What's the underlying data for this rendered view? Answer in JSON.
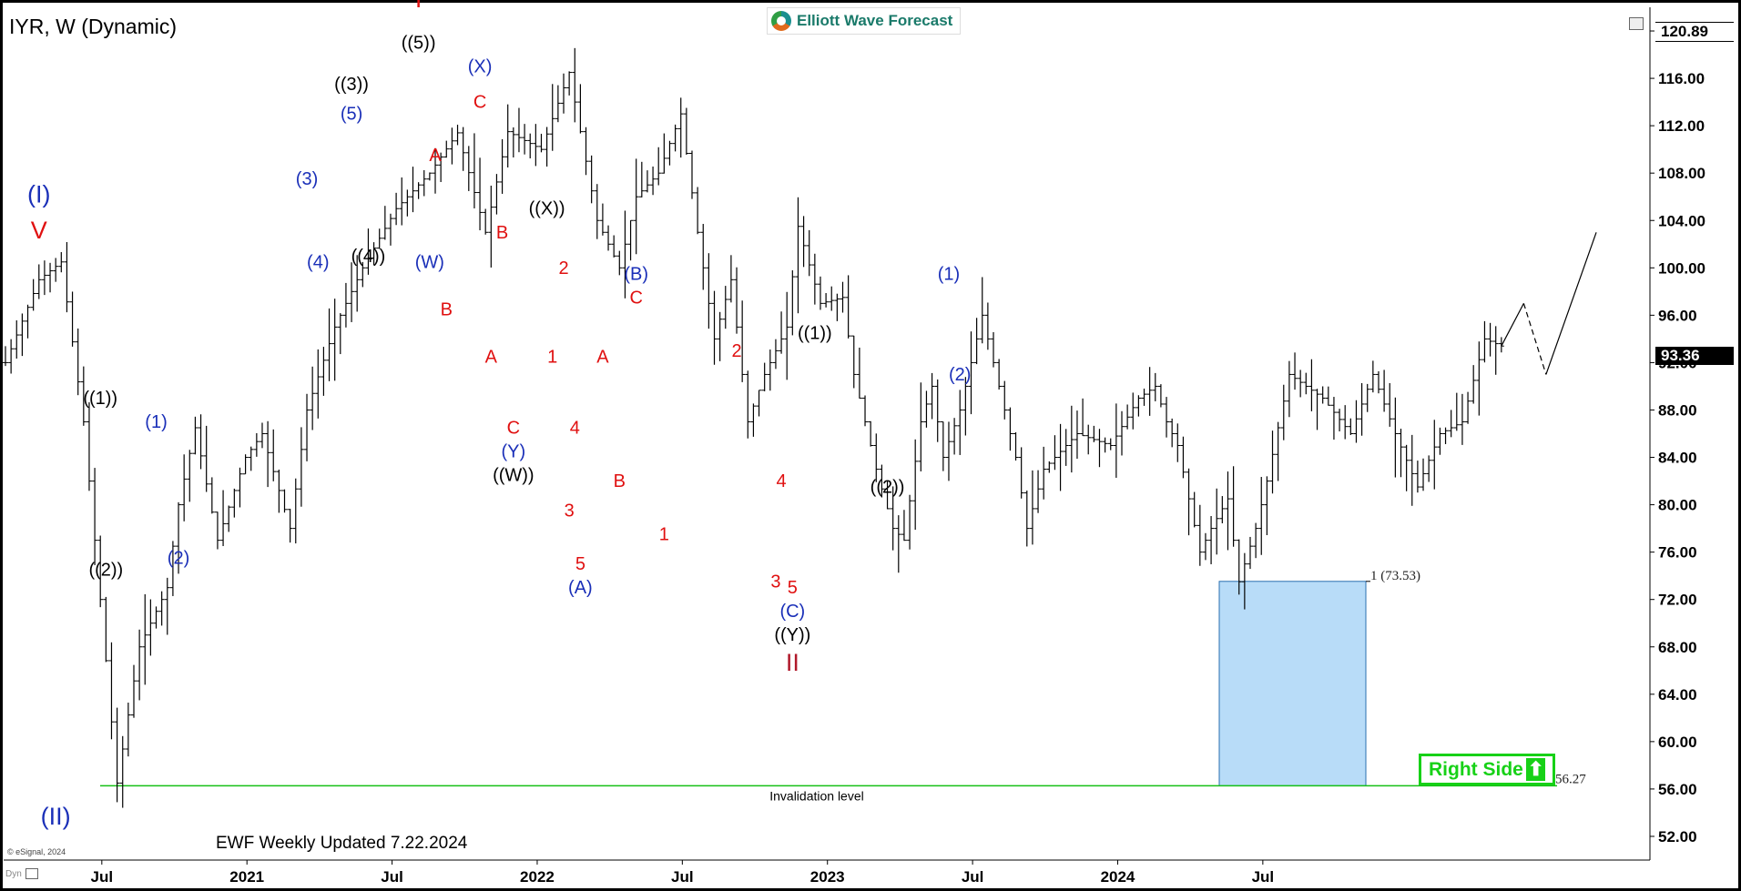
{
  "header": {
    "ticker": "IYR, W (Dynamic)",
    "brand": "Elliott Wave Forecast",
    "last_high_badge": "120.89",
    "current_price_badge": "93.36"
  },
  "footer": {
    "note": "EWF Weekly Updated 7.22.2024",
    "copyright": "© eSignal, 2024",
    "dyn": "Dyn"
  },
  "right_side": {
    "label": "Right Side",
    "arrow": "⬆"
  },
  "colors": {
    "black_labels": "#000000",
    "blue_labels": "#1a2fb8",
    "red_labels": "#e01010",
    "darkred_labels": "#b0182a",
    "box_fill": "#b8dcf8",
    "box_edge": "#2a6fb0",
    "invalidation_line": "#16c016",
    "right_side": "#17d117"
  },
  "chart_data": {
    "type": "bar",
    "title": "",
    "symbol": "IYR",
    "timeframe": "W",
    "ylim": [
      50,
      122
    ],
    "y_ticks": [
      "52.00",
      "56.00",
      "60.00",
      "64.00",
      "68.00",
      "72.00",
      "76.00",
      "80.00",
      "84.00",
      "88.00",
      "92.00",
      "96.00",
      "100.00",
      "104.00",
      "108.00",
      "112.00",
      "116.00",
      "120.00"
    ],
    "x_ticks": [
      "Jul",
      "2021",
      "Jul",
      "2022",
      "Jul",
      "2023",
      "Jul",
      "2024",
      "Jul"
    ],
    "grid": false,
    "price_path": [
      [
        0,
        92
      ],
      [
        6,
        99
      ],
      [
        10,
        100.5
      ],
      [
        14,
        87
      ],
      [
        17,
        72
      ],
      [
        20,
        56.5
      ],
      [
        24,
        68
      ],
      [
        29,
        73
      ],
      [
        31,
        80
      ],
      [
        34,
        86.5
      ],
      [
        38,
        77
      ],
      [
        43,
        84
      ],
      [
        46,
        86
      ],
      [
        51,
        78
      ],
      [
        54,
        88
      ],
      [
        59,
        95
      ],
      [
        64,
        100
      ],
      [
        70,
        105
      ],
      [
        76,
        108
      ],
      [
        81,
        111.4
      ],
      [
        86,
        103
      ],
      [
        90,
        111.5
      ],
      [
        96,
        110
      ],
      [
        101,
        116.5
      ],
      [
        106,
        104
      ],
      [
        110,
        100
      ],
      [
        113,
        106
      ],
      [
        117,
        108
      ],
      [
        121,
        113
      ],
      [
        124,
        103
      ],
      [
        127,
        94
      ],
      [
        130,
        99
      ],
      [
        133,
        87
      ],
      [
        136,
        91
      ],
      [
        140,
        95
      ],
      [
        142,
        103.5
      ],
      [
        146,
        97
      ],
      [
        150,
        97.5
      ],
      [
        152,
        91
      ],
      [
        156,
        83
      ],
      [
        159,
        78
      ],
      [
        161,
        77
      ],
      [
        164,
        87
      ],
      [
        166,
        90
      ],
      [
        168,
        84
      ],
      [
        171,
        88
      ],
      [
        175,
        96
      ],
      [
        178,
        90
      ],
      [
        181,
        84
      ],
      [
        183,
        78
      ],
      [
        186,
        83
      ],
      [
        192,
        86
      ],
      [
        198,
        85
      ],
      [
        203,
        89
      ],
      [
        206,
        90
      ],
      [
        208,
        87
      ],
      [
        210,
        85
      ],
      [
        214,
        76
      ],
      [
        216,
        78
      ],
      [
        219,
        80.5
      ],
      [
        221,
        73.5
      ],
      [
        224,
        78
      ],
      [
        226,
        82
      ],
      [
        230,
        91
      ],
      [
        236,
        89
      ],
      [
        241,
        86
      ],
      [
        245,
        91
      ],
      [
        249,
        86
      ],
      [
        253,
        81.5
      ],
      [
        257,
        86
      ],
      [
        261,
        87
      ],
      [
        265,
        94
      ],
      [
        268,
        93.4
      ]
    ],
    "projection": [
      [
        268,
        93.4
      ],
      [
        272,
        97
      ],
      [
        276,
        91
      ],
      [
        285,
        103
      ]
    ],
    "wave_labels": [
      {
        "text": "(I)",
        "x": 6,
        "y": 105.5,
        "color": "blue"
      },
      {
        "text": "V",
        "x": 6,
        "y": 102.5,
        "color": "red"
      },
      {
        "text": "(II)",
        "x": 9,
        "y": 53,
        "color": "blue"
      },
      {
        "text": "((1))",
        "x": 17,
        "y": 88.5,
        "color": "black"
      },
      {
        "text": "((2))",
        "x": 18,
        "y": 74,
        "color": "black"
      },
      {
        "text": "(1)",
        "x": 27,
        "y": 86.5,
        "color": "blue"
      },
      {
        "text": "(2)",
        "x": 31,
        "y": 75,
        "color": "blue"
      },
      {
        "text": "(3)",
        "x": 54,
        "y": 107,
        "color": "blue"
      },
      {
        "text": "(4)",
        "x": 56,
        "y": 100,
        "color": "blue"
      },
      {
        "text": "((3))",
        "x": 62,
        "y": 115,
        "color": "black"
      },
      {
        "text": "(5)",
        "x": 62,
        "y": 112.5,
        "color": "blue"
      },
      {
        "text": "((4))",
        "x": 65,
        "y": 100.5,
        "color": "black"
      },
      {
        "text": "I",
        "x": 74,
        "y": 122,
        "color": "red"
      },
      {
        "text": "((5))",
        "x": 74,
        "y": 118.5,
        "color": "black"
      },
      {
        "text": "A",
        "x": 77,
        "y": 109,
        "color": "red"
      },
      {
        "text": "(W)",
        "x": 76,
        "y": 100,
        "color": "blue"
      },
      {
        "text": "B",
        "x": 79,
        "y": 96,
        "color": "red"
      },
      {
        "text": "(X)",
        "x": 85,
        "y": 116.5,
        "color": "blue"
      },
      {
        "text": "C",
        "x": 85,
        "y": 113.5,
        "color": "red"
      },
      {
        "text": "B",
        "x": 89,
        "y": 102.5,
        "color": "red"
      },
      {
        "text": "A",
        "x": 87,
        "y": 92,
        "color": "red"
      },
      {
        "text": "C",
        "x": 91,
        "y": 86,
        "color": "red"
      },
      {
        "text": "(Y)",
        "x": 91,
        "y": 84,
        "color": "blue"
      },
      {
        "text": "((W))",
        "x": 91,
        "y": 82,
        "color": "black"
      },
      {
        "text": "((X))",
        "x": 97,
        "y": 104.5,
        "color": "black"
      },
      {
        "text": "2",
        "x": 100,
        "y": 99.5,
        "color": "red"
      },
      {
        "text": "1",
        "x": 98,
        "y": 92,
        "color": "red"
      },
      {
        "text": "4",
        "x": 102,
        "y": 86,
        "color": "red"
      },
      {
        "text": "3",
        "x": 101,
        "y": 79,
        "color": "red"
      },
      {
        "text": "5",
        "x": 103,
        "y": 74.5,
        "color": "red"
      },
      {
        "text": "(A)",
        "x": 103,
        "y": 72.5,
        "color": "blue"
      },
      {
        "text": "A",
        "x": 107,
        "y": 92,
        "color": "red"
      },
      {
        "text": "B",
        "x": 110,
        "y": 81.5,
        "color": "red"
      },
      {
        "text": "(B)",
        "x": 113,
        "y": 99,
        "color": "blue"
      },
      {
        "text": "C",
        "x": 113,
        "y": 97,
        "color": "red"
      },
      {
        "text": "1",
        "x": 118,
        "y": 77,
        "color": "red"
      },
      {
        "text": "2",
        "x": 131,
        "y": 92.5,
        "color": "red"
      },
      {
        "text": "((1))",
        "x": 145,
        "y": 94,
        "color": "black"
      },
      {
        "text": "4",
        "x": 139,
        "y": 81.5,
        "color": "red"
      },
      {
        "text": "3",
        "x": 138,
        "y": 73,
        "color": "red"
      },
      {
        "text": "5",
        "x": 141,
        "y": 72.5,
        "color": "red"
      },
      {
        "text": "(C)",
        "x": 141,
        "y": 70.5,
        "color": "blue"
      },
      {
        "text": "((Y))",
        "x": 141,
        "y": 68.5,
        "color": "black"
      },
      {
        "text": "II",
        "x": 141,
        "y": 66,
        "color": "darkred"
      },
      {
        "text": "((2))",
        "x": 158,
        "y": 81,
        "color": "black"
      },
      {
        "text": "(1)",
        "x": 169,
        "y": 99,
        "color": "blue"
      },
      {
        "text": "(2)",
        "x": 171,
        "y": 90.5,
        "color": "blue"
      }
    ],
    "annotations": [
      {
        "text": "1 (73.53)",
        "y": 73.53
      },
      {
        "text": "56.27",
        "y": 56.27
      },
      {
        "text": "Invalidation level",
        "y": 56.27
      }
    ],
    "target_box": {
      "y_high": 73.53,
      "y_low": 56.27
    },
    "invalidation_level": 56.27
  }
}
